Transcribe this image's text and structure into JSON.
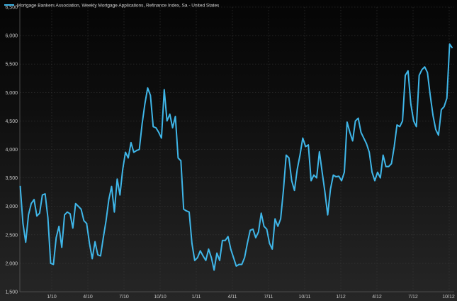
{
  "colors": {
    "series": "#3fb6e8",
    "background": "#111111",
    "grid": "#3a3a3a",
    "text": "#c8c8c8"
  },
  "chart_data": {
    "type": "line",
    "title": "",
    "xlabel": "",
    "ylabel": "",
    "grid": true,
    "legend_position": "top-left",
    "ylim": [
      1500,
      6500
    ],
    "y_ticks": [
      "1,500",
      "2,000",
      "2,500",
      "3,000",
      "3,500",
      "4,000",
      "4,500",
      "5,000",
      "5,500",
      "6,000",
      "6,500"
    ],
    "x_ticks": [
      "1/10",
      "4/10",
      "7/10",
      "10/10",
      "1/11",
      "4/11",
      "7/11",
      "10/11",
      "1/12",
      "4/12",
      "7/12",
      "10/12"
    ],
    "series": [
      {
        "name": "Mortgage Bankers Association, Weekly Mortgage Applications, Refinance Index, Sa - United States",
        "values": [
          3360,
          2700,
          2370,
          2850,
          3050,
          3120,
          2830,
          2880,
          3200,
          3220,
          2800,
          2000,
          1980,
          2450,
          2650,
          2280,
          2850,
          2900,
          2870,
          2620,
          3050,
          3000,
          2950,
          2750,
          2700,
          2350,
          2080,
          2380,
          2150,
          2130,
          2450,
          2750,
          3120,
          3350,
          2900,
          3480,
          3200,
          3650,
          3950,
          3850,
          4120,
          3950,
          3980,
          4000,
          4450,
          4800,
          5080,
          4950,
          4400,
          4380,
          4300,
          4200,
          5050,
          4500,
          4620,
          4380,
          4580,
          3850,
          3800,
          2950,
          2920,
          2900,
          2350,
          2050,
          2100,
          2220,
          2130,
          2050,
          2250,
          2100,
          1880,
          2180,
          2050,
          2400,
          2400,
          2470,
          2250,
          2100,
          1950,
          1980,
          1980,
          2100,
          2350,
          2580,
          2600,
          2450,
          2550,
          2880,
          2650,
          2600,
          2350,
          2250,
          2780,
          2650,
          2780,
          3280,
          3900,
          3850,
          3450,
          3280,
          3650,
          3900,
          4200,
          4050,
          4080,
          3450,
          3550,
          3500,
          3960,
          3600,
          3250,
          2850,
          3300,
          3550,
          3520,
          3530,
          3450,
          3600,
          4480,
          4300,
          4150,
          4500,
          4550,
          4300,
          4200,
          4100,
          3950,
          3600,
          3450,
          3600,
          3500,
          3900,
          3700,
          3700,
          3750,
          4050,
          4430,
          4400,
          4500,
          5300,
          5380,
          4800,
          4500,
          4400,
          5300,
          5400,
          5450,
          5350,
          4950,
          4600,
          4350,
          4250,
          4700,
          4750,
          4900,
          5850,
          5780
        ]
      }
    ]
  }
}
